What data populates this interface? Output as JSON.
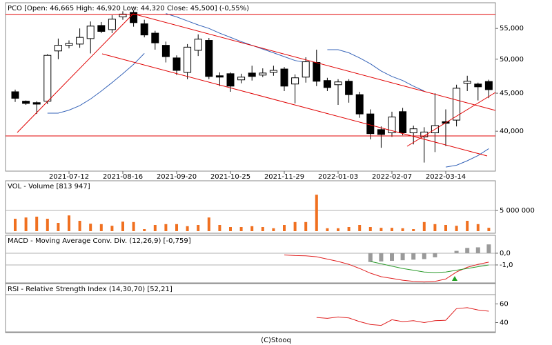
{
  "footer": "(C)Stooq",
  "chart_data": [
    {
      "type": "candlestick",
      "title": "PCO [Open: 46,665  High: 46,920  Low: 44,320  Close: 45,500] (-0,55%)",
      "categories": [
        null,
        null,
        null,
        null,
        null,
        "2021-07-12",
        null,
        null,
        null,
        null,
        "2021-08-16",
        null,
        null,
        null,
        null,
        "2021-09-20",
        null,
        null,
        null,
        null,
        "2021-10-25",
        null,
        null,
        null,
        null,
        "2021-11-29",
        null,
        null,
        null,
        null,
        "2022-01-03",
        null,
        null,
        null,
        null,
        "2022-02-07",
        null,
        null,
        null,
        null,
        "2022-03-14",
        null,
        null,
        null,
        null
      ],
      "open": [
        45200,
        43900,
        43700,
        43900,
        51300,
        52200,
        52400,
        53300,
        55500,
        54800,
        57000,
        57800,
        55800,
        54200,
        52200,
        50200,
        48000,
        51400,
        53000,
        47500,
        47800,
        46900,
        47900,
        47600,
        48000,
        48500,
        46300,
        47300,
        49500,
        46800,
        46200,
        46700,
        44800,
        42200,
        40200,
        39800,
        42500,
        39800,
        39300,
        39800,
        41200,
        41400,
        46400,
        46300,
        46665
      ],
      "high": [
        45500,
        44000,
        43900,
        50800,
        53300,
        53000,
        55000,
        56200,
        56100,
        57300,
        58000,
        58200,
        56500,
        54600,
        52800,
        50600,
        52400,
        54000,
        53400,
        48000,
        48000,
        47800,
        49000,
        48600,
        49000,
        48800,
        47700,
        50300,
        51500,
        47200,
        47000,
        47000,
        45200,
        42800,
        40600,
        42500,
        43000,
        40700,
        40500,
        45000,
        42800,
        46200,
        47500,
        46500,
        46920
      ],
      "low": [
        43800,
        43400,
        42200,
        43500,
        50000,
        51700,
        51800,
        50900,
        54200,
        54200,
        56500,
        55300,
        53500,
        51500,
        49500,
        47600,
        47000,
        50500,
        47000,
        46000,
        45200,
        46400,
        46800,
        47300,
        47500,
        45300,
        43600,
        46500,
        46000,
        45300,
        43400,
        43700,
        41700,
        39000,
        38000,
        39300,
        39500,
        38400,
        36300,
        37500,
        38200,
        40600,
        45300,
        44000,
        44320
      ],
      "close": [
        44300,
        43600,
        43500,
        50600,
        52200,
        52500,
        53500,
        55400,
        54500,
        56600,
        57500,
        56000,
        53900,
        52600,
        50400,
        48300,
        51900,
        53200,
        47400,
        47300,
        46000,
        47300,
        47400,
        47900,
        48300,
        46000,
        47200,
        49600,
        46700,
        45800,
        46600,
        44800,
        42200,
        39700,
        39600,
        41800,
        39800,
        40300,
        39900,
        40700,
        41000,
        45700,
        46700,
        45900,
        45500
      ],
      "overlay": {
        "color": "#3563b8",
        "values": [
          null,
          null,
          null,
          42300,
          42300,
          42700,
          43300,
          44200,
          45300,
          46500,
          47800,
          49200,
          50900,
          null,
          57600,
          57000,
          56300,
          55600,
          55000,
          54200,
          53500,
          52800,
          52200,
          51600,
          51000,
          50400,
          49800,
          49500,
          null,
          51500,
          51500,
          51000,
          50200,
          49300,
          48200,
          47400,
          46800,
          46000,
          45300,
          null,
          35800,
          36000,
          36500,
          37100,
          37900
        ]
      },
      "log": true,
      "ylim": [
        35500,
        59300
      ],
      "yticks": [
        {
          "value": 55000,
          "label": "55,000"
        },
        {
          "value": 50000,
          "label": "50,000"
        },
        {
          "value": 45000,
          "label": "45,000"
        },
        {
          "value": 40000,
          "label": "40,000"
        }
      ]
    },
    {
      "type": "bar",
      "title": "VOL - Volume [813 947]",
      "color": "#f07020",
      "values": [
        3000000,
        3300000,
        3500000,
        3000000,
        2000000,
        3800000,
        2500000,
        1800000,
        1700000,
        1300000,
        2300000,
        2200000,
        500000,
        1500000,
        1700000,
        1700000,
        1200000,
        1500000,
        3300000,
        1500000,
        1000000,
        1000000,
        1200000,
        1000000,
        700000,
        1500000,
        2200000,
        2200000,
        8800000,
        700000,
        700000,
        1000000,
        1500000,
        1000000,
        800000,
        800000,
        700000,
        500000,
        2200000,
        1700000,
        1500000,
        1300000,
        2500000,
        1700000,
        813947
      ],
      "ylim": [
        0,
        12000000
      ],
      "yticks": [
        {
          "value": 5000000,
          "label": "5 000 000"
        }
      ],
      "grid": true
    },
    {
      "type": "macd",
      "title": "MACD - Moving Average Conv. Div. (12,26,9) [-0,759]",
      "series": [
        {
          "color": "#e02020",
          "values": [
            null,
            null,
            null,
            null,
            null,
            null,
            null,
            null,
            null,
            null,
            null,
            null,
            null,
            null,
            null,
            null,
            null,
            null,
            null,
            null,
            null,
            null,
            null,
            null,
            null,
            -0.15,
            -0.2,
            -0.22,
            -0.3,
            -0.5,
            -0.7,
            -0.95,
            -1.3,
            -1.7,
            -2.0,
            -2.15,
            -2.3,
            -2.4,
            -2.45,
            -2.4,
            -2.2,
            -1.6,
            -1.2,
            -0.95,
            -0.759
          ]
        },
        {
          "color": "#2a9a2a",
          "values": [
            null,
            null,
            null,
            null,
            null,
            null,
            null,
            null,
            null,
            null,
            null,
            null,
            null,
            null,
            null,
            null,
            null,
            null,
            null,
            null,
            null,
            null,
            null,
            null,
            null,
            null,
            null,
            null,
            null,
            null,
            null,
            null,
            null,
            -0.7,
            -0.9,
            -1.1,
            -1.3,
            -1.45,
            -1.6,
            -1.65,
            -1.6,
            -1.45,
            -1.3,
            -1.15,
            -1.0
          ]
        }
      ],
      "histogram": {
        "color": "#9a9a9a",
        "values": [
          null,
          null,
          null,
          null,
          null,
          null,
          null,
          null,
          null,
          null,
          null,
          null,
          null,
          null,
          null,
          null,
          null,
          null,
          null,
          null,
          null,
          null,
          null,
          null,
          null,
          null,
          null,
          null,
          null,
          null,
          null,
          null,
          null,
          -0.75,
          -0.7,
          -0.65,
          -0.6,
          -0.55,
          -0.5,
          -0.35,
          null,
          0.2,
          0.45,
          0.5,
          0.75
        ]
      },
      "ylim": [
        -2.53,
        1.35
      ],
      "yticks": [
        {
          "value": 0,
          "label": "0,0"
        },
        {
          "value": -1,
          "label": "-1,0"
        }
      ],
      "grid": true
    },
    {
      "type": "line",
      "title": "RSI - Relative Strength Index (14,30,70) [52,21]",
      "color": "#e02020",
      "values": [
        null,
        null,
        null,
        null,
        null,
        null,
        null,
        null,
        null,
        null,
        null,
        null,
        null,
        null,
        null,
        null,
        null,
        null,
        null,
        null,
        null,
        null,
        null,
        null,
        null,
        null,
        null,
        null,
        45.5,
        44.5,
        46,
        45,
        41,
        38,
        37,
        43,
        41,
        42,
        40,
        42,
        42.5,
        55,
        56,
        53.5,
        52.21
      ],
      "levels": [
        70,
        30
      ],
      "ylim": [
        30,
        80
      ],
      "yticks": [
        60,
        40
      ]
    }
  ]
}
